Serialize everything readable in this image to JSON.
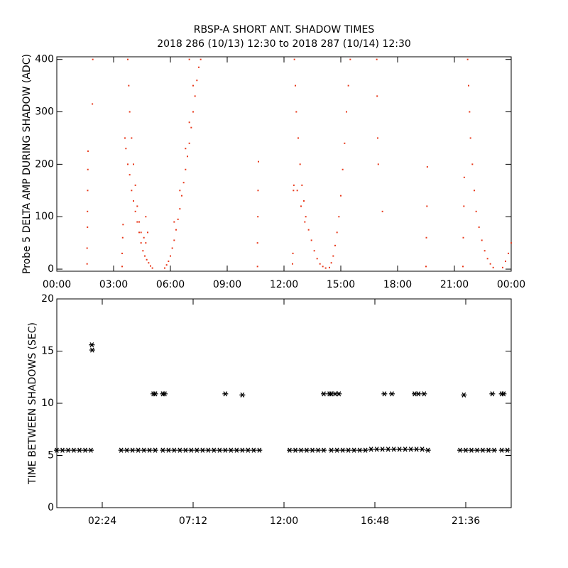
{
  "chart_data": [
    {
      "type": "scatter",
      "title": "RBSP-A SHORT ANT. SHADOW TIMES",
      "subtitle": "2018 286 (10/13) 12:30 to 2018 287 (10/14) 12:30",
      "ylabel": "Probe 5 DELTA AMP DURING SHADOW (ADC)",
      "color": "#e8381a",
      "xlim": [
        0,
        24
      ],
      "ylim": [
        -4,
        405
      ],
      "xticks": [
        {
          "value": 0,
          "label": "00:00"
        },
        {
          "value": 3,
          "label": "03:00"
        },
        {
          "value": 6,
          "label": "06:00"
        },
        {
          "value": 9,
          "label": "09:00"
        },
        {
          "value": 12,
          "label": "12:00"
        },
        {
          "value": 15,
          "label": "15:00"
        },
        {
          "value": 18,
          "label": "18:00"
        },
        {
          "value": 21,
          "label": "21:00"
        },
        {
          "value": 24,
          "label": "00:00"
        }
      ],
      "yticks": [
        0,
        100,
        200,
        300,
        400
      ],
      "x": [
        1.6,
        1.6,
        1.62,
        1.62,
        1.63,
        1.64,
        1.65,
        1.9,
        1.88,
        3.45,
        3.45,
        3.48,
        3.5,
        3.6,
        3.65,
        3.75,
        3.85,
        3.95,
        4.05,
        4.15,
        4.25,
        4.35,
        4.45,
        4.55,
        4.65,
        4.75,
        4.85,
        4.95,
        5.05,
        3.75,
        3.8,
        3.85,
        3.95,
        4.05,
        4.15,
        4.25,
        4.35,
        4.45,
        4.6,
        4.7,
        4.7,
        4.8,
        5.7,
        5.8,
        5.9,
        6.0,
        6.1,
        6.2,
        6.3,
        6.4,
        6.5,
        6.6,
        6.7,
        6.8,
        6.9,
        7.0,
        7.1,
        7.2,
        7.3,
        7.4,
        7.5,
        7.6,
        6.2,
        6.5,
        6.8,
        7.0,
        7.2,
        7.0,
        10.6,
        10.6,
        10.62,
        10.63,
        10.65,
        12.45,
        12.47,
        12.5,
        12.52,
        12.55,
        12.6,
        12.65,
        12.75,
        12.85,
        12.95,
        13.05,
        13.15,
        13.3,
        13.45,
        13.6,
        13.75,
        13.9,
        14.05,
        14.2,
        12.7,
        12.9,
        13.1,
        14.4,
        14.5,
        14.6,
        14.7,
        14.8,
        14.9,
        15.0,
        15.1,
        15.2,
        15.3,
        15.4,
        15.5,
        16.9,
        16.92,
        16.95,
        16.98,
        17.2,
        19.5,
        19.52,
        19.55,
        19.57,
        21.45,
        21.47,
        21.5,
        21.52,
        21.7,
        21.75,
        21.8,
        21.85,
        21.95,
        22.05,
        22.15,
        22.3,
        22.45,
        22.6,
        22.75,
        22.9,
        23.05,
        23.55,
        23.7,
        23.85,
        24.0
      ],
      "values": [
        10,
        40,
        80,
        110,
        150,
        190,
        225,
        400,
        315,
        5,
        30,
        60,
        85,
        250,
        230,
        200,
        180,
        150,
        130,
        110,
        90,
        70,
        50,
        35,
        25,
        18,
        12,
        6,
        2,
        400,
        350,
        300,
        250,
        200,
        160,
        120,
        90,
        70,
        60,
        50,
        100,
        70,
        2,
        8,
        15,
        25,
        40,
        55,
        75,
        95,
        115,
        140,
        165,
        190,
        215,
        240,
        270,
        300,
        330,
        360,
        385,
        400,
        90,
        150,
        230,
        280,
        350,
        400,
        5,
        50,
        100,
        150,
        205,
        10,
        30,
        150,
        160,
        400,
        350,
        300,
        250,
        200,
        160,
        130,
        100,
        75,
        55,
        35,
        20,
        10,
        5,
        2,
        150,
        120,
        90,
        3,
        12,
        25,
        45,
        70,
        100,
        140,
        190,
        240,
        300,
        350,
        400,
        400,
        330,
        250,
        200,
        110,
        5,
        60,
        120,
        195,
        5,
        60,
        120,
        175,
        400,
        350,
        300,
        250,
        200,
        150,
        110,
        80,
        55,
        35,
        20,
        10,
        3,
        3,
        15,
        30,
        50
      ]
    },
    {
      "type": "asterisk",
      "ylabel": "TIME BETWEEN SHADOWS (SEC)",
      "color": "#000000",
      "xlim": [
        0,
        24
      ],
      "ylim": [
        0,
        20
      ],
      "xticks": [
        {
          "value": 2.4,
          "label": "02:24"
        },
        {
          "value": 7.2,
          "label": "07:12"
        },
        {
          "value": 12,
          "label": "12:00"
        },
        {
          "value": 16.8,
          "label": "16:48"
        },
        {
          "value": 21.6,
          "label": "21:36"
        }
      ],
      "yticks": [
        0,
        5,
        10,
        15,
        20
      ],
      "x": [
        0,
        0.3,
        0.6,
        0.9,
        1.2,
        1.5,
        1.8,
        3.4,
        3.7,
        4.0,
        4.3,
        4.6,
        4.9,
        5.2,
        5.6,
        5.9,
        6.2,
        6.5,
        6.8,
        7.1,
        7.4,
        7.7,
        8.0,
        8.3,
        8.6,
        8.9,
        9.2,
        9.5,
        9.8,
        10.1,
        10.4,
        10.7,
        12.3,
        12.6,
        12.9,
        13.2,
        13.5,
        13.8,
        14.1,
        14.5,
        14.8,
        15.1,
        15.4,
        15.7,
        16.0,
        16.3,
        16.6,
        16.9,
        17.2,
        17.5,
        17.8,
        18.1,
        18.4,
        18.7,
        19.0,
        19.3,
        19.6,
        21.3,
        21.6,
        21.9,
        22.2,
        22.5,
        22.8,
        23.1,
        23.5,
        23.8,
        1.85,
        1.87,
        5.1,
        5.2,
        5.6,
        5.7,
        8.9,
        9.8,
        14.1,
        14.4,
        14.5,
        14.7,
        14.9,
        17.3,
        17.7,
        18.9,
        19.1,
        19.4,
        21.5,
        23.0,
        23.5,
        23.6
      ],
      "values": [
        5.5,
        5.5,
        5.5,
        5.5,
        5.5,
        5.5,
        5.5,
        5.5,
        5.5,
        5.5,
        5.5,
        5.5,
        5.5,
        5.5,
        5.5,
        5.5,
        5.5,
        5.5,
        5.5,
        5.5,
        5.5,
        5.5,
        5.5,
        5.5,
        5.5,
        5.5,
        5.5,
        5.5,
        5.5,
        5.5,
        5.5,
        5.5,
        5.5,
        5.5,
        5.5,
        5.5,
        5.5,
        5.5,
        5.5,
        5.5,
        5.5,
        5.5,
        5.5,
        5.5,
        5.5,
        5.5,
        5.6,
        5.6,
        5.6,
        5.6,
        5.6,
        5.6,
        5.6,
        5.6,
        5.6,
        5.6,
        5.5,
        5.5,
        5.5,
        5.5,
        5.5,
        5.5,
        5.5,
        5.5,
        5.5,
        5.5,
        15.6,
        15.1,
        10.9,
        10.9,
        10.9,
        10.9,
        10.9,
        10.8,
        10.9,
        10.9,
        10.9,
        10.9,
        10.9,
        10.9,
        10.9,
        10.9,
        10.9,
        10.9,
        10.8,
        10.9,
        10.9,
        10.9
      ]
    }
  ]
}
